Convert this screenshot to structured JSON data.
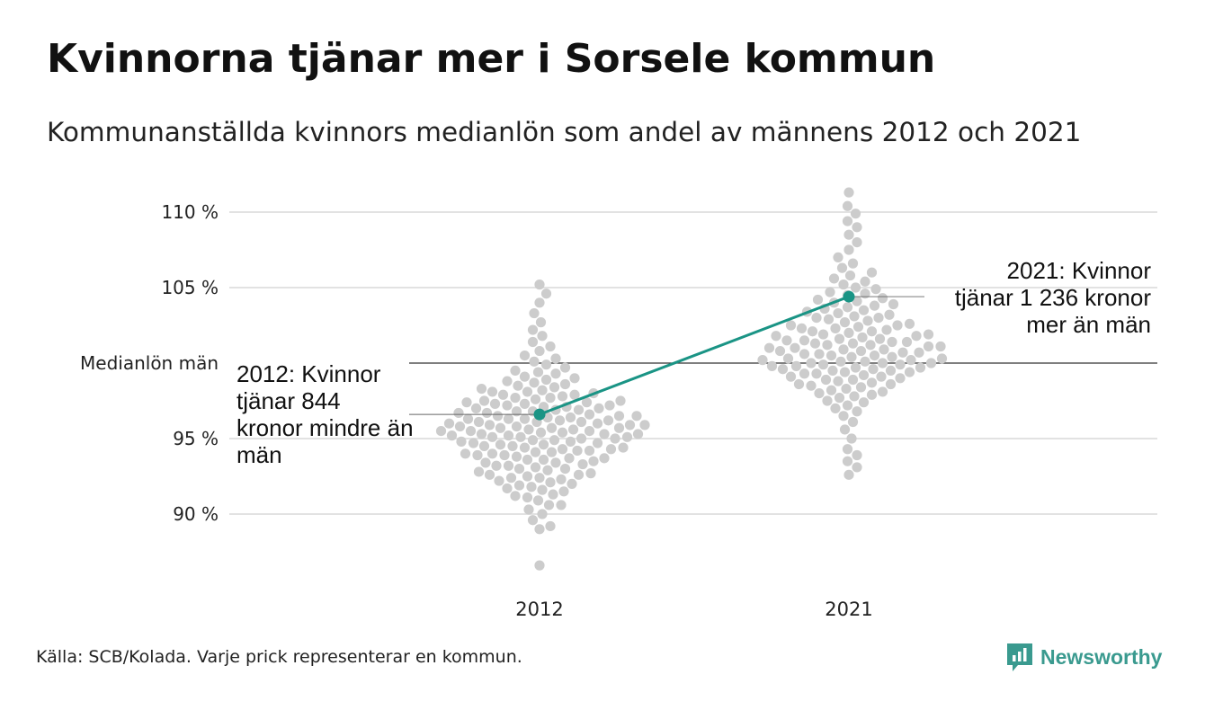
{
  "title": "Kvinnorna tjänar mer i Sorsele kommun",
  "subtitle": "Kommunanställda kvinnors medianlön som andel av männens 2012 och 2021",
  "source": "Källa: SCB/Kolada. Varje prick representerar en kommun.",
  "logo": {
    "name": "Newsworthy",
    "color": "#3a9a8f"
  },
  "chart_data": {
    "type": "scatter",
    "subtype": "beeswarm",
    "categories": [
      "2012",
      "2021"
    ],
    "ylim": [
      86,
      111.5
    ],
    "yticks": [
      {
        "value": 90,
        "label": "90 %"
      },
      {
        "value": 95,
        "label": "95 %"
      },
      {
        "value": 100,
        "label": "Medianlön män"
      },
      {
        "value": 105,
        "label": "105 %"
      },
      {
        "value": 110,
        "label": "110 %"
      }
    ],
    "reference_line": {
      "value": 100,
      "label": "Medianlön män"
    },
    "grid": true,
    "colors": {
      "dots": "#cccccc",
      "highlight": "#1a9485",
      "grid": "#e2e2e2",
      "reference": "#333333"
    },
    "highlight": {
      "name": "Sorsele",
      "values": [
        {
          "category": "2012",
          "value": 96.6,
          "label": "2012: Kvinnor tjänar 844 kronor mindre än män"
        },
        {
          "category": "2021",
          "value": 104.4,
          "label": "2021: Kvinnor tjänar 1 236 kronor mer än män"
        }
      ]
    },
    "series": [
      {
        "name": "2012",
        "values": [
          86.6,
          89.0,
          89.2,
          89.6,
          90.0,
          90.3,
          90.6,
          90.6,
          90.9,
          91.1,
          91.2,
          91.3,
          91.5,
          91.6,
          91.7,
          91.8,
          91.9,
          92.0,
          92.1,
          92.2,
          92.3,
          92.4,
          92.4,
          92.5,
          92.6,
          92.6,
          92.7,
          92.8,
          92.9,
          93.0,
          93.0,
          93.1,
          93.2,
          93.2,
          93.3,
          93.4,
          93.4,
          93.5,
          93.6,
          93.6,
          93.7,
          93.7,
          93.8,
          93.9,
          93.9,
          94.0,
          94.0,
          94.1,
          94.1,
          94.2,
          94.2,
          94.3,
          94.3,
          94.4,
          94.4,
          94.5,
          94.5,
          94.6,
          94.6,
          94.7,
          94.7,
          94.8,
          94.8,
          94.9,
          94.9,
          95.0,
          95.0,
          95.1,
          95.1,
          95.1,
          95.2,
          95.2,
          95.3,
          95.3,
          95.3,
          95.4,
          95.4,
          95.5,
          95.5,
          95.5,
          95.6,
          95.6,
          95.7,
          95.7,
          95.7,
          95.8,
          95.8,
          95.9,
          95.9,
          95.9,
          96.0,
          96.0,
          96.1,
          96.1,
          96.1,
          96.2,
          96.2,
          96.3,
          96.3,
          96.3,
          96.4,
          96.4,
          96.5,
          96.5,
          96.5,
          96.6,
          96.7,
          96.7,
          96.8,
          96.8,
          96.9,
          96.9,
          97.0,
          97.0,
          97.1,
          97.1,
          97.2,
          97.2,
          97.3,
          97.3,
          97.4,
          97.4,
          97.5,
          97.5,
          97.6,
          97.7,
          97.7,
          97.8,
          97.9,
          97.9,
          98.0,
          98.1,
          98.1,
          98.2,
          98.3,
          98.4,
          98.5,
          98.6,
          98.7,
          98.8,
          98.9,
          99.0,
          99.1,
          99.3,
          99.4,
          99.5,
          99.7,
          99.9,
          100.1,
          100.3,
          100.5,
          100.8,
          101.1,
          101.4,
          101.8,
          102.2,
          102.7,
          103.3,
          104.0,
          104.6,
          105.2
        ]
      },
      {
        "name": "2021",
        "values": [
          92.6,
          93.1,
          93.5,
          93.9,
          94.3,
          95.0,
          95.6,
          96.1,
          96.5,
          96.8,
          97.0,
          97.2,
          97.4,
          97.5,
          97.7,
          97.8,
          97.9,
          98.0,
          98.1,
          98.2,
          98.3,
          98.4,
          98.5,
          98.6,
          98.6,
          98.7,
          98.8,
          98.9,
          98.9,
          99.0,
          99.1,
          99.1,
          99.2,
          99.3,
          99.3,
          99.4,
          99.4,
          99.5,
          99.5,
          99.6,
          99.6,
          99.7,
          99.7,
          99.8,
          99.8,
          99.9,
          99.9,
          100.0,
          100.0,
          100.0,
          100.1,
          100.1,
          100.2,
          100.2,
          100.3,
          100.3,
          100.4,
          100.4,
          100.5,
          100.5,
          100.6,
          100.6,
          100.7,
          100.7,
          100.8,
          100.8,
          100.9,
          100.9,
          101.0,
          101.0,
          101.1,
          101.1,
          101.2,
          101.2,
          101.3,
          101.3,
          101.4,
          101.4,
          101.5,
          101.5,
          101.6,
          101.6,
          101.7,
          101.8,
          101.8,
          101.9,
          101.9,
          102.0,
          102.1,
          102.1,
          102.2,
          102.3,
          102.3,
          102.4,
          102.5,
          102.5,
          102.6,
          102.7,
          102.8,
          102.9,
          103.0,
          103.0,
          103.1,
          103.2,
          103.3,
          103.4,
          103.5,
          103.6,
          103.7,
          103.8,
          103.9,
          104.0,
          104.1,
          104.2,
          104.3,
          104.5,
          104.6,
          104.7,
          104.9,
          105.0,
          105.2,
          105.4,
          105.6,
          105.8,
          106.0,
          106.3,
          106.6,
          107.0,
          107.5,
          108.0,
          108.5,
          109.0,
          109.4,
          109.9,
          110.4,
          111.3
        ]
      }
    ]
  }
}
